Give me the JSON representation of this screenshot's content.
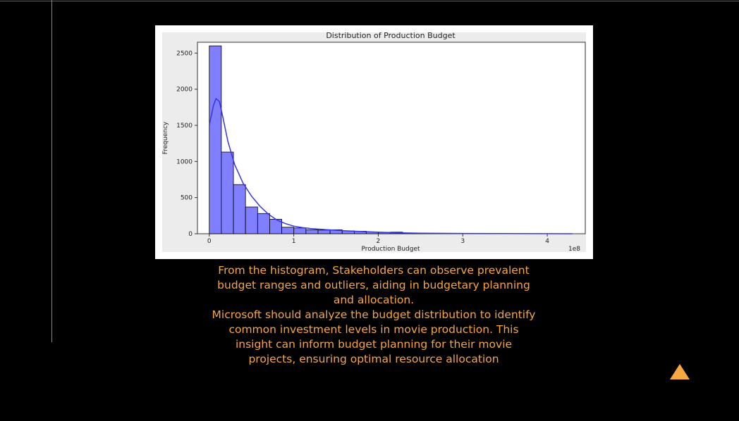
{
  "caption": {
    "paragraph1": "From the histogram, Stakeholders can observe prevalent budget ranges and outliers, aiding in budgetary planning and allocation.",
    "paragraph2": "Microsoft should analyze the budget distribution to identify common investment levels in movie production. This insight can inform budget planning for their movie projects, ensuring optimal resource allocation"
  },
  "colors": {
    "background": "#000000",
    "accent": "#f5a742",
    "bar_fill": "#7f7fff",
    "bar_edge": "#000000",
    "kde_line": "#3535e8"
  },
  "scroll_top_icon": "triangle-up-icon",
  "chart_data": {
    "type": "bar",
    "title": "Distribution of Production Budget",
    "xlabel": "Production Budget",
    "ylabel": "Frequency",
    "x_offset_label": "1e8",
    "xlim": [
      -0.14,
      4.45
    ],
    "ylim": [
      0,
      2650
    ],
    "xticks": [
      0,
      1,
      2,
      3,
      4
    ],
    "yticks": [
      0,
      500,
      1000,
      1500,
      2000,
      2500
    ],
    "grid": false,
    "bin_width": 0.143,
    "bins_start": 0,
    "values": [
      2600,
      1130,
      680,
      370,
      280,
      200,
      90,
      80,
      55,
      50,
      55,
      40,
      35,
      25,
      20,
      22,
      10,
      8,
      5,
      4,
      3,
      2,
      2,
      2,
      1,
      1,
      1,
      1,
      1,
      1
    ],
    "kde": {
      "x": [
        0,
        0.05,
        0.08,
        0.12,
        0.16,
        0.22,
        0.3,
        0.4,
        0.5,
        0.6,
        0.7,
        0.8,
        0.9,
        1.0,
        1.1,
        1.2,
        1.4,
        1.6,
        1.8,
        2.0,
        2.2,
        2.5,
        3.0,
        3.5,
        4.0,
        4.3
      ],
      "y": [
        1500,
        1780,
        1870,
        1830,
        1620,
        1280,
        960,
        700,
        520,
        380,
        270,
        190,
        140,
        105,
        85,
        72,
        55,
        42,
        30,
        22,
        14,
        8,
        4,
        2,
        1,
        0
      ]
    }
  }
}
